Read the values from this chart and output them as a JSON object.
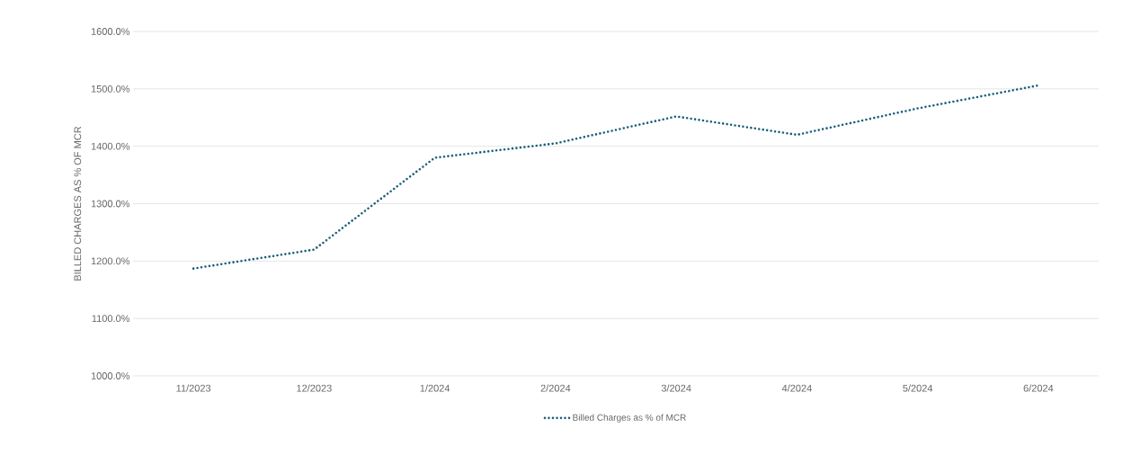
{
  "chart_data": {
    "type": "line",
    "ylabel": "BILLED CHARGES AS % OF MCR",
    "categories": [
      "11/2023",
      "12/2023",
      "1/2024",
      "2/2024",
      "3/2024",
      "4/2024",
      "5/2024",
      "6/2024"
    ],
    "series": [
      {
        "name": "Billed Charges as % of MCR",
        "color": "#1b5e7b",
        "values": [
          1187,
          1220,
          1380,
          1405,
          1452,
          1420,
          1466,
          1506
        ]
      }
    ],
    "ylim": [
      1000,
      1600
    ],
    "yticks": [
      {
        "value": 1000,
        "label": "1000.0%"
      },
      {
        "value": 1100,
        "label": "1100.0%"
      },
      {
        "value": 1200,
        "label": "1200.0%"
      },
      {
        "value": 1300,
        "label": "1300.0%"
      },
      {
        "value": 1400,
        "label": "1400.0%"
      },
      {
        "value": 1500,
        "label": "1500.0%"
      },
      {
        "value": 1600,
        "label": "1600.0%"
      }
    ],
    "grid": "y",
    "legend": "bottom",
    "marker": "none",
    "line_style": "dotted"
  }
}
